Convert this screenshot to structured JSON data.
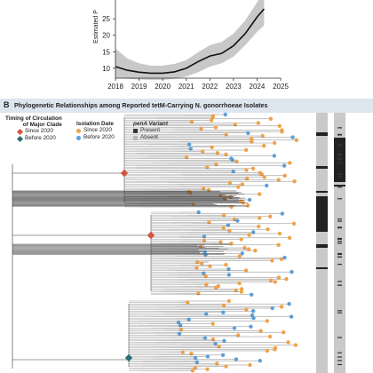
{
  "chart_data": [
    {
      "type": "line",
      "ylabel": "Estimated P",
      "x": [
        2018,
        2018.5,
        2019,
        2019.5,
        2020,
        2020.5,
        2021,
        2021.5,
        2022,
        2022.5,
        2023,
        2023.5,
        2024,
        2024.3
      ],
      "series": [
        {
          "values": [
            10.5,
            9.4,
            8.8,
            8.5,
            8.5,
            8.9,
            10.0,
            12.0,
            13.7,
            14.5,
            16.8,
            20.5,
            25.5,
            28
          ]
        }
      ],
      "band_lower": [
        7.0,
        6.8,
        6.6,
        6.5,
        6.5,
        6.8,
        7.5,
        8.8,
        10.5,
        11.5,
        13.5,
        17.0,
        21.0,
        23.0
      ],
      "band_upper": [
        16.0,
        13.0,
        11.5,
        10.8,
        10.8,
        11.3,
        12.5,
        14.8,
        17.0,
        18.0,
        20.5,
        24.5,
        30.0,
        33.0
      ],
      "xlim": [
        2018,
        2025
      ],
      "ylim": [
        8,
        28
      ],
      "xticks": [
        "2018",
        "2019",
        "2020",
        "2021",
        "2022",
        "2023",
        "2024",
        "2025"
      ],
      "yticks": [
        "10",
        "15",
        "20",
        "25"
      ],
      "colors": {
        "line": "#111111",
        "band": "#c8c8c8"
      }
    }
  ],
  "panel_b": {
    "letter": "B",
    "title": "Phylogenetic Relationships among Reported tetM-Carrying N. gonorrhoeae Isolates",
    "legend_timing": {
      "header_line1": "Timing of Circulation",
      "header_line2": "of Major Clade",
      "items": [
        {
          "label": "Since 2020",
          "color": "#d2553a"
        },
        {
          "label": "Before 2020",
          "color": "#2a6f7a"
        }
      ]
    },
    "legend_isolation": {
      "header": "Isolation Date",
      "items": [
        {
          "label": "Since 2020",
          "color": "#f0a24a"
        },
        {
          "label": "Before 2020",
          "color": "#5b9fd6"
        }
      ]
    },
    "legend_pena": {
      "header": "penA Variant",
      "items": [
        {
          "label": "Present",
          "color": "#222222"
        },
        {
          "label": "Absent",
          "color": "#c9c9c9"
        }
      ]
    }
  }
}
